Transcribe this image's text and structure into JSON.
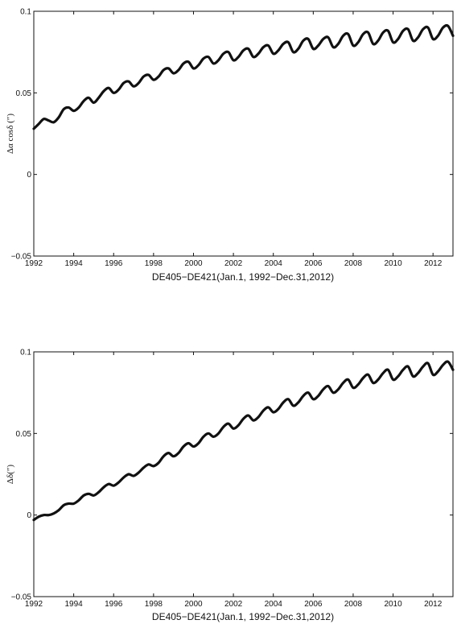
{
  "chart_data": [
    {
      "type": "line",
      "title": "",
      "xlabel": "DE405−DE421(Jan.1, 1992−Dec.31,2012)",
      "ylabel": "Δα cosδ (″)",
      "xlim": [
        1992,
        2013
      ],
      "ylim": [
        -0.05,
        0.1
      ],
      "xticks": [
        "1992",
        "1994",
        "1996",
        "1998",
        "2000",
        "2002",
        "2004",
        "2006",
        "2008",
        "2010",
        "2012"
      ],
      "yticks": [
        "−0.05",
        "0",
        "0.05",
        "0.1"
      ],
      "grid": false,
      "line_color": "#111111",
      "series": [
        {
          "x": [
            1992,
            1992.25,
            1992.5,
            1992.75,
            1993,
            1993.25,
            1993.5,
            1993.75,
            1994,
            1994.25,
            1994.5,
            1994.75,
            1995,
            1995.25,
            1995.5,
            1995.75,
            1996,
            1996.25,
            1996.5,
            1996.75,
            1997,
            1997.25,
            1997.5,
            1997.75,
            1998,
            1998.25,
            1998.5,
            1998.75,
            1999,
            1999.25,
            1999.5,
            1999.75,
            2000,
            2000.25,
            2000.5,
            2000.75,
            2001,
            2001.25,
            2001.5,
            2001.75,
            2002,
            2002.25,
            2002.5,
            2002.75,
            2003,
            2003.25,
            2003.5,
            2003.75,
            2004,
            2004.25,
            2004.5,
            2004.75,
            2005,
            2005.25,
            2005.5,
            2005.75,
            2006,
            2006.25,
            2006.5,
            2006.75,
            2007,
            2007.25,
            2007.5,
            2007.75,
            2008,
            2008.25,
            2008.5,
            2008.75,
            2009,
            2009.25,
            2009.5,
            2009.75,
            2010,
            2010.25,
            2010.5,
            2010.75,
            2011,
            2011.25,
            2011.5,
            2011.75,
            2012,
            2012.25,
            2012.5,
            2012.75,
            2013
          ],
          "y": [
            0.028,
            0.031,
            0.034,
            0.033,
            0.032,
            0.035,
            0.04,
            0.041,
            0.039,
            0.041,
            0.045,
            0.047,
            0.044,
            0.047,
            0.051,
            0.053,
            0.05,
            0.052,
            0.056,
            0.057,
            0.054,
            0.056,
            0.06,
            0.061,
            0.058,
            0.06,
            0.064,
            0.065,
            0.062,
            0.064,
            0.068,
            0.069,
            0.065,
            0.067,
            0.071,
            0.072,
            0.068,
            0.07,
            0.074,
            0.075,
            0.07,
            0.072,
            0.076,
            0.077,
            0.072,
            0.074,
            0.078,
            0.079,
            0.074,
            0.076,
            0.08,
            0.081,
            0.075,
            0.077,
            0.082,
            0.083,
            0.077,
            0.079,
            0.083,
            0.084,
            0.078,
            0.08,
            0.085,
            0.086,
            0.079,
            0.081,
            0.086,
            0.087,
            0.08,
            0.082,
            0.087,
            0.088,
            0.081,
            0.083,
            0.088,
            0.089,
            0.082,
            0.084,
            0.089,
            0.09,
            0.083,
            0.085,
            0.09,
            0.091,
            0.085
          ]
        }
      ]
    },
    {
      "type": "line",
      "title": "",
      "xlabel": "DE405−DE421(Jan.1, 1992−Dec.31,2012)",
      "ylabel": "Δδ(″)",
      "xlim": [
        1992,
        2013
      ],
      "ylim": [
        -0.05,
        0.1
      ],
      "xticks": [
        "1992",
        "1994",
        "1996",
        "1998",
        "2000",
        "2002",
        "2004",
        "2006",
        "2008",
        "2010",
        "2012"
      ],
      "yticks": [
        "−0.05",
        "0",
        "0.05",
        "0.1"
      ],
      "grid": false,
      "line_color": "#111111",
      "series": [
        {
          "x": [
            1992,
            1992.25,
            1992.5,
            1992.75,
            1993,
            1993.25,
            1993.5,
            1993.75,
            1994,
            1994.25,
            1994.5,
            1994.75,
            1995,
            1995.25,
            1995.5,
            1995.75,
            1996,
            1996.25,
            1996.5,
            1996.75,
            1997,
            1997.25,
            1997.5,
            1997.75,
            1998,
            1998.25,
            1998.5,
            1998.75,
            1999,
            1999.25,
            1999.5,
            1999.75,
            2000,
            2000.25,
            2000.5,
            2000.75,
            2001,
            2001.25,
            2001.5,
            2001.75,
            2002,
            2002.25,
            2002.5,
            2002.75,
            2003,
            2003.25,
            2003.5,
            2003.75,
            2004,
            2004.25,
            2004.5,
            2004.75,
            2005,
            2005.25,
            2005.5,
            2005.75,
            2006,
            2006.25,
            2006.5,
            2006.75,
            2007,
            2007.25,
            2007.5,
            2007.75,
            2008,
            2008.25,
            2008.5,
            2008.75,
            2009,
            2009.25,
            2009.5,
            2009.75,
            2010,
            2010.25,
            2010.5,
            2010.75,
            2011,
            2011.25,
            2011.5,
            2011.75,
            2012,
            2012.25,
            2012.5,
            2012.75,
            2013
          ],
          "y": [
            -0.003,
            -0.001,
            0.0,
            0.0,
            0.001,
            0.003,
            0.006,
            0.007,
            0.007,
            0.009,
            0.012,
            0.013,
            0.012,
            0.014,
            0.017,
            0.019,
            0.018,
            0.02,
            0.023,
            0.025,
            0.024,
            0.026,
            0.029,
            0.031,
            0.03,
            0.032,
            0.036,
            0.038,
            0.036,
            0.038,
            0.042,
            0.044,
            0.042,
            0.044,
            0.048,
            0.05,
            0.048,
            0.05,
            0.054,
            0.056,
            0.053,
            0.055,
            0.059,
            0.061,
            0.058,
            0.06,
            0.064,
            0.066,
            0.063,
            0.065,
            0.069,
            0.071,
            0.067,
            0.069,
            0.073,
            0.075,
            0.071,
            0.073,
            0.077,
            0.079,
            0.075,
            0.077,
            0.081,
            0.083,
            0.078,
            0.08,
            0.084,
            0.086,
            0.081,
            0.083,
            0.087,
            0.089,
            0.083,
            0.085,
            0.089,
            0.091,
            0.085,
            0.087,
            0.091,
            0.093,
            0.086,
            0.088,
            0.092,
            0.094,
            0.089
          ]
        }
      ]
    }
  ]
}
